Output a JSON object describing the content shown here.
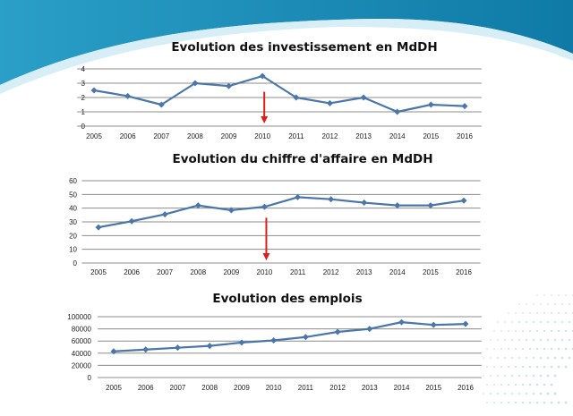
{
  "theme": {
    "series_color": "#4a76ab",
    "arrow_color": "#d9201c",
    "grid_color": "#8c8c8c",
    "banner_color": "#1a8ab3"
  },
  "chart_data": [
    {
      "type": "line",
      "title": "Evolution des investissement en MdDH",
      "categories": [
        "2005",
        "2006",
        "2007",
        "2008",
        "2009",
        "2010",
        "2011",
        "2012",
        "2013",
        "2014",
        "2015",
        "2016"
      ],
      "values": [
        2.5,
        2.1,
        1.5,
        3.0,
        2.8,
        3.5,
        2.0,
        1.6,
        2.0,
        1.0,
        1.5,
        1.4
      ],
      "ylim": [
        0,
        4
      ],
      "yticks": [
        "0",
        "1",
        "2",
        "3",
        "4"
      ],
      "grid": true,
      "marker": "diamond",
      "annotation": {
        "type": "down-arrow",
        "category": "2010"
      }
    },
    {
      "type": "line",
      "title": "Evolution du chiffre d'affaire en MdDH",
      "categories": [
        "2005",
        "2006",
        "2007",
        "2008",
        "2009",
        "2010",
        "2011",
        "2012",
        "2013",
        "2014",
        "2015",
        "2016"
      ],
      "values": [
        26,
        30.5,
        35.5,
        42,
        38.5,
        41,
        48,
        46.5,
        44,
        42,
        42,
        45.5
      ],
      "ylim": [
        0,
        60
      ],
      "yticks": [
        "0",
        "10",
        "20",
        "30",
        "40",
        "50",
        "60"
      ],
      "grid": true,
      "marker": "diamond",
      "annotation": {
        "type": "down-arrow",
        "category": "2010"
      }
    },
    {
      "type": "line",
      "title": "Evolution des emplois",
      "categories": [
        "2005",
        "2006",
        "2007",
        "2008",
        "2009",
        "2010",
        "2011",
        "2012",
        "2013",
        "2014",
        "2015",
        "2016"
      ],
      "values": [
        43000,
        46000,
        49000,
        52000,
        57500,
        61000,
        66500,
        75000,
        80000,
        91000,
        86500,
        88000
      ],
      "ylim": [
        0,
        100000
      ],
      "yticks": [
        "0",
        "20000",
        "40000",
        "60000",
        "80000",
        "100000"
      ],
      "grid": true,
      "marker": "diamond"
    }
  ]
}
